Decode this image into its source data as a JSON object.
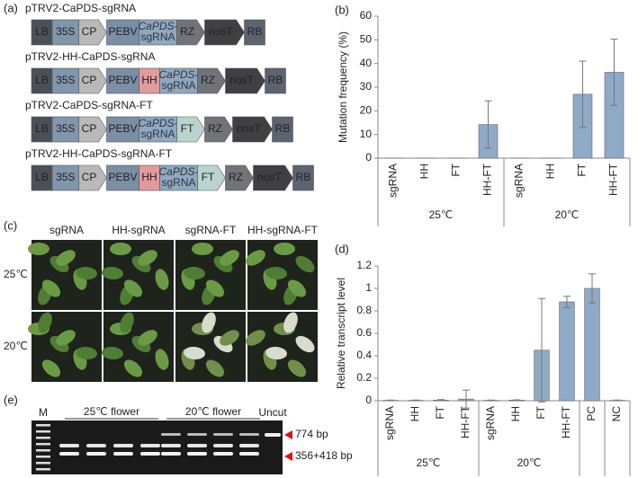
{
  "panel_labels": [
    "(a)",
    "(b)",
    "(c)",
    "(d)",
    "(e)"
  ],
  "constructs": [
    {
      "title": "pTRV2-CaPDS-sgRNA",
      "elements": [
        {
          "label": "LB",
          "color": "#4b5058"
        },
        {
          "label": "35S",
          "color": "#7f96ad"
        },
        {
          "label": "CP",
          "color": "#b9b9b9",
          "shape": "arrow"
        },
        {
          "label": "PEBV",
          "color": "#7a8ea5"
        },
        {
          "lines": [
            "CaPDS-",
            "sgRNA"
          ],
          "color": "#8ea8c4"
        },
        {
          "label": "RZ",
          "color": "#707479",
          "shape": "arrow"
        },
        {
          "label": "nosT",
          "color": "#3f3f44",
          "shape": "arrow"
        },
        {
          "label": "RB",
          "color": "#5b6470"
        }
      ]
    },
    {
      "title": "pTRV2-HH-CaPDS-sgRNA",
      "elements": [
        {
          "label": "LB",
          "color": "#4b5058"
        },
        {
          "label": "35S",
          "color": "#7f96ad"
        },
        {
          "label": "CP",
          "color": "#b9b9b9",
          "shape": "arrow"
        },
        {
          "label": "PEBV",
          "color": "#7a8ea5"
        },
        {
          "label": "HH",
          "color": "#e39a9a"
        },
        {
          "lines": [
            "CaPDS-",
            "sgRNA"
          ],
          "color": "#8ea8c4"
        },
        {
          "label": "RZ",
          "color": "#707479",
          "shape": "arrow"
        },
        {
          "label": "nosT",
          "color": "#3f3f44",
          "shape": "arrow"
        },
        {
          "label": "RB",
          "color": "#5b6470"
        }
      ]
    },
    {
      "title": "pTRV2-CaPDS-sgRNA-FT",
      "elements": [
        {
          "label": "LB",
          "color": "#4b5058"
        },
        {
          "label": "35S",
          "color": "#7f96ad"
        },
        {
          "label": "CP",
          "color": "#b9b9b9",
          "shape": "arrow"
        },
        {
          "label": "PEBV",
          "color": "#7a8ea5"
        },
        {
          "lines": [
            "CaPDS-",
            "sgRNA"
          ],
          "color": "#8ea8c4"
        },
        {
          "label": "FT",
          "color": "#b9d3cf",
          "shape": "arrow"
        },
        {
          "label": "RZ",
          "color": "#707479",
          "shape": "arrow"
        },
        {
          "label": "nosT",
          "color": "#3f3f44",
          "shape": "arrow"
        },
        {
          "label": "RB",
          "color": "#5b6470"
        }
      ]
    },
    {
      "title": "pTRV2-HH-CaPDS-sgRNA-FT",
      "elements": [
        {
          "label": "LB",
          "color": "#4b5058"
        },
        {
          "label": "35S",
          "color": "#7f96ad"
        },
        {
          "label": "CP",
          "color": "#b9b9b9",
          "shape": "arrow"
        },
        {
          "label": "PEBV",
          "color": "#7a8ea5"
        },
        {
          "label": "HH",
          "color": "#e39a9a"
        },
        {
          "lines": [
            "CaPDS-",
            "sgRNA"
          ],
          "color": "#8ea8c4"
        },
        {
          "label": "FT",
          "color": "#b9d3cf",
          "shape": "arrow"
        },
        {
          "label": "RZ",
          "color": "#707479",
          "shape": "arrow"
        },
        {
          "label": "nosT",
          "color": "#3f3f44",
          "shape": "arrow"
        },
        {
          "label": "RB",
          "color": "#5b6470"
        }
      ]
    }
  ],
  "photos": {
    "columns": [
      "sgRNA",
      "HH-sgRNA",
      "sgRNA-FT",
      "HH-sgRNA-FT"
    ],
    "rows": [
      "25℃",
      "20℃"
    ]
  },
  "gel": {
    "marker": "M",
    "groups": [
      "25℃ flower",
      "20℃ flower"
    ],
    "uncut": "Uncut",
    "bands": [
      "774 bp",
      "356+418 bp"
    ]
  },
  "chart_data": [
    {
      "type": "bar",
      "y_label": "Mutation frequency (%)",
      "color": "#8eaac6",
      "ylim": [
        0,
        60
      ],
      "yticks": [
        0,
        10,
        20,
        30,
        40,
        50,
        60
      ],
      "groups": [
        {
          "label": "25℃",
          "categories": [
            "sgRNA",
            "HH",
            "FT",
            "HH-FT"
          ],
          "values": [
            0,
            0,
            0,
            14.2
          ],
          "errors": [
            null,
            null,
            null,
            10
          ]
        },
        {
          "label": "20℃",
          "categories": [
            "sgRNA",
            "HH",
            "FT",
            "HH-FT"
          ],
          "values": [
            0,
            0,
            27,
            36.3
          ],
          "errors": [
            null,
            null,
            14,
            14
          ]
        }
      ]
    },
    {
      "type": "bar",
      "y_label": "Relative transcript level",
      "color": "#8eaac6",
      "ylim": [
        0,
        1.2
      ],
      "yticks": [
        0,
        0.2,
        0.4,
        0.6,
        0.8,
        1,
        1.2
      ],
      "groups": [
        {
          "label": "25℃",
          "categories": [
            "sgRNA",
            "HH",
            "FT",
            "HH-FT"
          ],
          "values": [
            0.003,
            0.003,
            0.005,
            0.015
          ],
          "errors": [
            0.003,
            0.003,
            0.005,
            0.08
          ]
        },
        {
          "label": "20℃",
          "categories": [
            "sgRNA",
            "HH",
            "FT",
            "HH-FT"
          ],
          "values": [
            0.003,
            0.005,
            0.45,
            0.88
          ],
          "errors": [
            0.003,
            0.003,
            0.46,
            0.05
          ]
        },
        {
          "label": null,
          "categories": [
            "PC"
          ],
          "values": [
            1
          ],
          "errors": [
            0.13
          ]
        },
        {
          "label": null,
          "categories": [
            "NC"
          ],
          "values": [
            0.003
          ],
          "errors": [
            0.003
          ]
        }
      ]
    }
  ]
}
